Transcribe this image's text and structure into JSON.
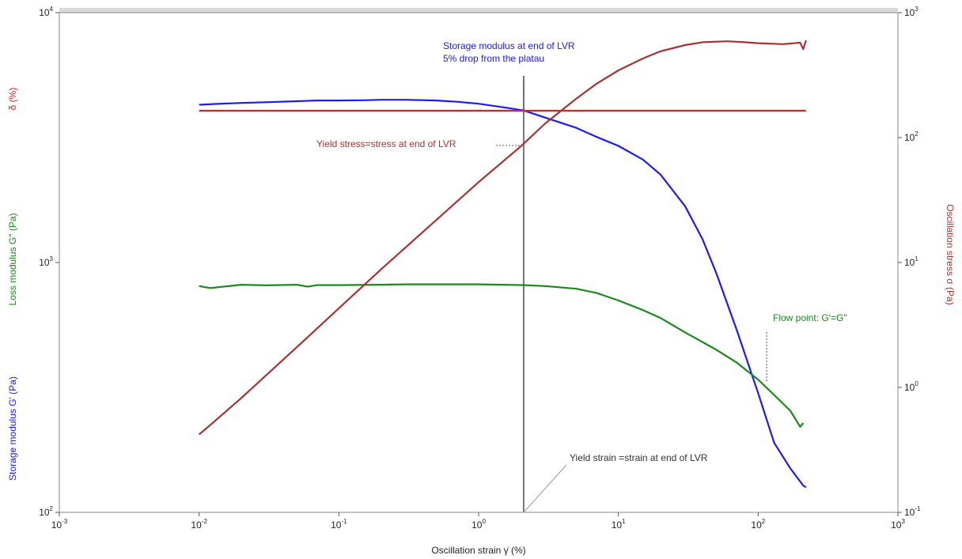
{
  "chart_data": {
    "type": "line",
    "x_scale": "log",
    "xlim": [
      0.001,
      1000
    ],
    "y_left_scale": "log",
    "ylim_left": [
      100,
      10000
    ],
    "y_right_scale": "log",
    "ylim_right": [
      0.1,
      1000
    ],
    "xlabel": "Oscillation strain  γ̇  (%)",
    "ylabels_left": [
      {
        "text": "Storage modulus  G' (Pa)",
        "color": "#1a1aff"
      },
      {
        "text": "Loss modulus  G\" (Pa)",
        "color": "#1a8a1a"
      },
      {
        "text": "δ  (%)",
        "color": "#e02020"
      }
    ],
    "ylabel_right": {
      "text": "Oscillation stress  σ  (Pa)",
      "color": "#a83232"
    },
    "x_ticks": [
      {
        "base": "10",
        "exp": "-3",
        "value": 0.001
      },
      {
        "base": "10",
        "exp": "-2",
        "value": 0.01
      },
      {
        "base": "10",
        "exp": "-1",
        "value": 0.1
      },
      {
        "base": "10",
        "exp": "0",
        "value": 1
      },
      {
        "base": "10",
        "exp": "1",
        "value": 10
      },
      {
        "base": "10",
        "exp": "2",
        "value": 100
      },
      {
        "base": "10",
        "exp": "3",
        "value": 1000
      }
    ],
    "y_left_ticks": [
      {
        "base": "10",
        "exp": "2",
        "value": 100
      },
      {
        "base": "10",
        "exp": "3",
        "value": 1000
      },
      {
        "base": "10",
        "exp": "4",
        "value": 10000
      }
    ],
    "y_right_ticks": [
      {
        "base": "10",
        "exp": "-1",
        "value": 0.1
      },
      {
        "base": "10",
        "exp": "0",
        "value": 1
      },
      {
        "base": "10",
        "exp": "1",
        "value": 10
      },
      {
        "base": "10",
        "exp": "2",
        "value": 100
      },
      {
        "base": "10",
        "exp": "3",
        "value": 1000
      }
    ],
    "series": [
      {
        "name": "Storage modulus G'",
        "axis": "left",
        "color": "#1a1aff",
        "x": [
          0.01,
          0.013,
          0.02,
          0.03,
          0.05,
          0.07,
          0.1,
          0.15,
          0.2,
          0.3,
          0.5,
          0.7,
          1.0,
          1.5,
          2.1,
          3.0,
          5.0,
          7.0,
          10,
          15,
          20,
          30,
          40,
          50,
          70,
          100,
          130,
          170,
          210,
          220
        ],
        "values": [
          4280,
          4310,
          4350,
          4380,
          4420,
          4450,
          4450,
          4460,
          4480,
          4480,
          4450,
          4400,
          4320,
          4180,
          4060,
          3800,
          3460,
          3180,
          2930,
          2580,
          2250,
          1680,
          1240,
          910,
          540,
          300,
          190,
          150,
          128,
          126
        ]
      },
      {
        "name": "Loss modulus G\"",
        "axis": "left",
        "color": "#1a8a1a",
        "x": [
          0.01,
          0.012,
          0.02,
          0.03,
          0.05,
          0.06,
          0.07,
          0.1,
          0.2,
          0.3,
          0.5,
          1.0,
          1.5,
          2.1,
          3.0,
          5.0,
          7.0,
          10,
          15,
          20,
          30,
          50,
          70,
          100,
          130,
          170,
          200,
          210
        ],
        "values": [
          805,
          790,
          815,
          810,
          815,
          800,
          812,
          812,
          815,
          818,
          818,
          818,
          815,
          812,
          805,
          785,
          755,
          705,
          645,
          600,
          525,
          448,
          398,
          340,
          295,
          255,
          220,
          228
        ]
      },
      {
        "name": "δ",
        "axis": "left",
        "color": "#e02020",
        "x": [
          0.01,
          220
        ],
        "values": [
          4050,
          4050
        ]
      },
      {
        "name": "Oscillation stress σ",
        "axis": "right",
        "color": "#a83232",
        "x": [
          0.01,
          0.013,
          0.02,
          0.05,
          0.1,
          0.2,
          0.5,
          1.0,
          2.0,
          3.0,
          5.0,
          7.0,
          10,
          15,
          20,
          30,
          40,
          60,
          80,
          100,
          150,
          200,
          210,
          220
        ],
        "values": [
          0.42,
          0.54,
          0.82,
          2.1,
          4.3,
          8.8,
          22,
          44,
          85,
          130,
          205,
          270,
          345,
          430,
          490,
          550,
          580,
          590,
          580,
          570,
          560,
          575,
          510,
          600
        ]
      }
    ],
    "annotations": [
      {
        "text": "Storage modulus at end of LVR",
        "color": "#1a1aff"
      },
      {
        "text": "5% drop from the platau",
        "color": "#1a1aff"
      },
      {
        "text": "Yield stress=stress at end of LVR",
        "color": "#a83232"
      },
      {
        "text": "Flow point: G'=G\"",
        "color": "#1a8a1a"
      },
      {
        "text": "Yield strain =strain at end of LVR",
        "color": "#333333"
      }
    ],
    "yield_strain_x": 2.1,
    "flow_point_x": 115,
    "grid": false,
    "legend": "none"
  }
}
